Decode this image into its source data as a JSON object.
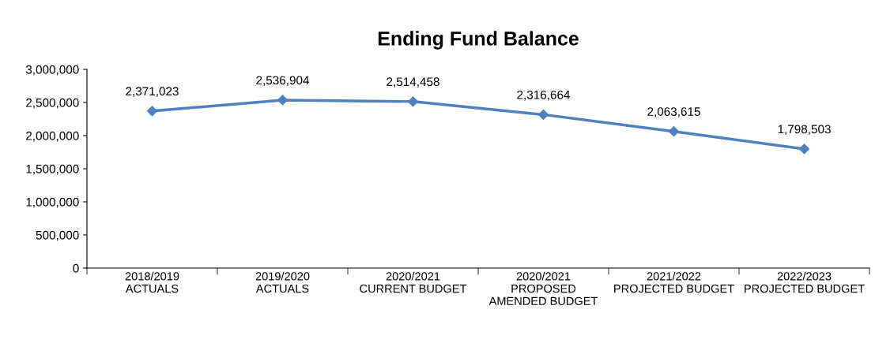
{
  "chart_data": {
    "type": "line",
    "title": "Ending Fund Balance",
    "categories": [
      "2018/2019\nACTUALS",
      "2019/2020\nACTUALS",
      "2020/2021\nCURRENT BUDGET",
      "2020/2021\nPROPOSED\nAMENDED BUDGET",
      "2021/2022\nPROJECTED BUDGET",
      "2022/2023\nPROJECTED BUDGET"
    ],
    "series": [
      {
        "color": "#4f81bd",
        "values": [
          2371023,
          2536904,
          2514458,
          2316664,
          2063615,
          1798503
        ],
        "value_labels": [
          "2,371,023",
          "2,536,904",
          "2,514,458",
          "2,316,664",
          "2,063,615",
          "1,798,503"
        ]
      }
    ],
    "ylim": [
      0,
      3000000
    ],
    "yticks": [
      {
        "value": 0,
        "label": "0"
      },
      {
        "value": 500000,
        "label": "500,000"
      },
      {
        "value": 1000000,
        "label": "1,000,000"
      },
      {
        "value": 1500000,
        "label": "1,500,000"
      },
      {
        "value": 2000000,
        "label": "2,000,000"
      },
      {
        "value": 2500000,
        "label": "2,500,000"
      },
      {
        "value": 3000000,
        "label": "3,000,000"
      }
    ],
    "marker": "diamond",
    "line_style": "solid",
    "grid": false,
    "legend": false
  }
}
